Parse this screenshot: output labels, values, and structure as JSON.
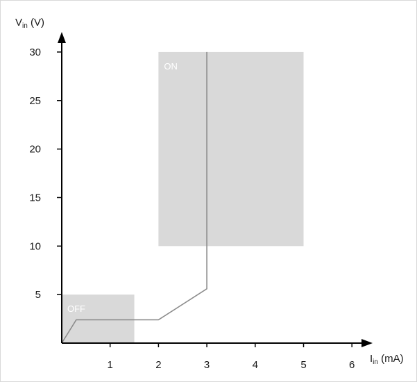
{
  "chart_data": {
    "type": "line",
    "title": "",
    "xlabel": {
      "main": "I",
      "sub": "in",
      "unit": " (mA)"
    },
    "ylabel": {
      "main": "V",
      "sub": "in",
      "unit": " (V)"
    },
    "xlim": [
      0,
      6
    ],
    "ylim": [
      0,
      30
    ],
    "x_ticks": [
      "1",
      "2",
      "3",
      "4",
      "5",
      "6"
    ],
    "y_ticks": [
      "5",
      "10",
      "15",
      "20",
      "25",
      "30"
    ],
    "grid": false,
    "regions": [
      {
        "label": "OFF",
        "x": [
          0,
          1.5
        ],
        "y": [
          0,
          5
        ],
        "color": "#d9d9d9"
      },
      {
        "label": "ON",
        "x": [
          2,
          5
        ],
        "y": [
          10,
          30
        ],
        "color": "#d9d9d9"
      }
    ],
    "series": [
      {
        "x": [
          0,
          0.3,
          2.0,
          3.0,
          3.0
        ],
        "y": [
          0,
          2.4,
          2.4,
          5.6,
          30
        ],
        "color": "#8c8c8c"
      }
    ]
  },
  "colors": {
    "axis": "#000000",
    "curve": "#8c8c8c",
    "region": "#d9d9d9"
  }
}
